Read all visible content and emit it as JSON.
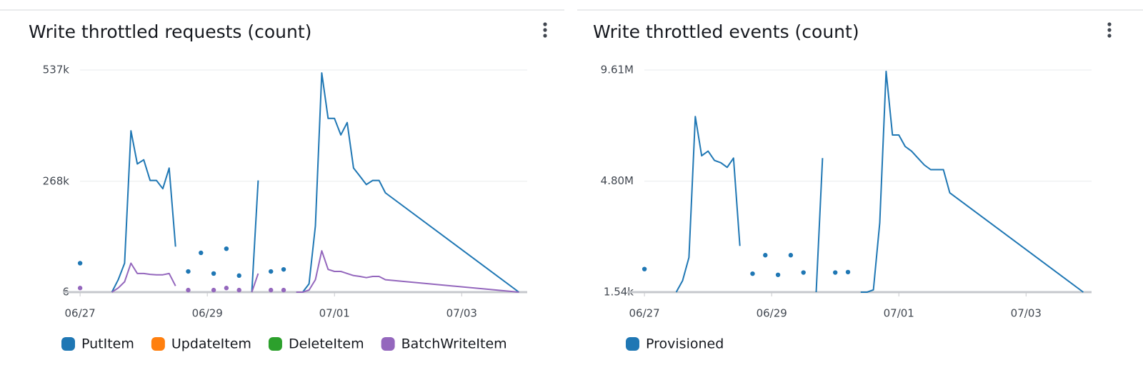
{
  "chart_data": [
    {
      "type": "line",
      "title": "Write throttled requests (count)",
      "x": [
        0,
        0.1,
        0.2,
        0.3,
        0.4,
        0.5,
        0.6,
        0.7,
        0.8,
        0.9,
        1.0,
        1.1,
        1.2,
        1.3,
        1.4,
        1.5,
        1.6,
        1.7,
        1.8,
        1.9,
        2.0,
        2.1,
        2.2,
        2.3,
        2.4,
        2.5,
        2.6,
        2.7,
        2.8,
        2.9,
        3.0,
        3.1,
        3.2,
        3.3,
        3.4,
        3.5,
        3.6,
        3.7,
        3.8,
        3.9,
        4.0,
        4.1,
        4.2,
        4.3,
        4.4,
        4.5,
        4.6,
        4.7,
        4.8,
        6.9
      ],
      "xlim": [
        -0.08,
        7.03
      ],
      "xticks": [
        {
          "value": 0,
          "label": "06/27"
        },
        {
          "value": 2,
          "label": "06/29"
        },
        {
          "value": 4,
          "label": "07/01"
        },
        {
          "value": 6,
          "label": "07/03"
        }
      ],
      "ylim": [
        6,
        537000
      ],
      "yticks": [
        6,
        {
          "value": 268000,
          "label": "268k"
        },
        {
          "value": 537000,
          "label": "537k"
        }
      ],
      "grid": true,
      "series": [
        {
          "name": "PutItem",
          "color": "#1f77b4",
          "values": [
            70000,
            null,
            null,
            null,
            null,
            0,
            30000,
            70000,
            390000,
            310000,
            320000,
            270000,
            270000,
            250000,
            300000,
            110000,
            null,
            50000,
            null,
            95000,
            null,
            45000,
            null,
            105000,
            null,
            40000,
            null,
            0,
            270000,
            null,
            50000,
            null,
            55000,
            null,
            0,
            0,
            20000,
            160000,
            530000,
            420000,
            420000,
            380000,
            410000,
            300000,
            280000,
            260000,
            270000,
            270000,
            240000,
            0
          ]
        },
        {
          "name": "UpdateItem",
          "color": "#ff7f0e",
          "values": [
            null,
            null,
            null,
            null,
            null,
            null,
            null,
            null,
            null,
            null,
            null,
            null,
            null,
            null,
            null,
            null,
            null,
            null,
            null,
            null,
            null,
            null,
            null,
            null,
            null,
            null,
            null,
            null,
            null,
            null,
            null,
            null,
            null,
            null,
            null,
            null,
            null,
            null,
            null,
            null,
            null,
            null,
            null,
            null,
            null,
            null,
            null,
            null,
            null,
            null
          ]
        },
        {
          "name": "DeleteItem",
          "color": "#2ca02c",
          "values": [
            null,
            null,
            null,
            null,
            null,
            null,
            null,
            null,
            null,
            null,
            null,
            null,
            null,
            null,
            null,
            null,
            null,
            null,
            null,
            null,
            null,
            null,
            null,
            null,
            null,
            null,
            null,
            null,
            null,
            null,
            null,
            null,
            null,
            null,
            null,
            null,
            null,
            null,
            null,
            null,
            null,
            null,
            null,
            null,
            null,
            null,
            null,
            null,
            null,
            null
          ]
        },
        {
          "name": "BatchWriteItem",
          "color": "#9467bd",
          "values": [
            10000,
            null,
            null,
            null,
            null,
            0,
            10000,
            25000,
            70000,
            45000,
            45000,
            43000,
            42000,
            42000,
            45000,
            15000,
            null,
            5000,
            null,
            null,
            null,
            5000,
            null,
            10000,
            null,
            5000,
            null,
            0,
            45000,
            null,
            5000,
            null,
            5000,
            null,
            0,
            0,
            5000,
            30000,
            100000,
            55000,
            50000,
            50000,
            45000,
            40000,
            38000,
            35000,
            38000,
            38000,
            30000,
            0
          ]
        }
      ]
    },
    {
      "type": "line",
      "title": "Write throttled events (count)",
      "x": [
        0,
        0.1,
        0.2,
        0.3,
        0.4,
        0.5,
        0.6,
        0.7,
        0.8,
        0.9,
        1.0,
        1.1,
        1.2,
        1.3,
        1.4,
        1.5,
        1.6,
        1.7,
        1.8,
        1.9,
        2.0,
        2.1,
        2.2,
        2.3,
        2.4,
        2.5,
        2.6,
        2.7,
        2.8,
        2.9,
        3.0,
        3.1,
        3.2,
        3.3,
        3.4,
        3.5,
        3.6,
        3.7,
        3.8,
        3.9,
        4.0,
        4.1,
        4.2,
        4.3,
        4.4,
        4.5,
        4.6,
        4.7,
        4.8,
        6.9
      ],
      "xlim": [
        -0.08,
        7.03
      ],
      "xticks": [
        {
          "value": 0,
          "label": "06/27"
        },
        {
          "value": 2,
          "label": "06/29"
        },
        {
          "value": 4,
          "label": "07/01"
        },
        {
          "value": 6,
          "label": "07/03"
        }
      ],
      "ylim": [
        1540,
        9610000
      ],
      "yticks": [
        {
          "value": 1540,
          "label": "1.54k"
        },
        {
          "value": 4800000,
          "label": "4.80M"
        },
        {
          "value": 9610000,
          "label": "9.61M"
        }
      ],
      "grid": true,
      "series": [
        {
          "name": "Provisioned",
          "color": "#1f77b4",
          "values": [
            1000000,
            null,
            null,
            null,
            null,
            1540,
            500000,
            1500000,
            7600000,
            5900000,
            6100000,
            5700000,
            5600000,
            5400000,
            5800000,
            2000000,
            null,
            800000,
            null,
            1600000,
            null,
            750000,
            null,
            1600000,
            null,
            850000,
            null,
            1540,
            5800000,
            null,
            850000,
            null,
            870000,
            null,
            1540,
            1540,
            100000,
            3000000,
            9550000,
            6800000,
            6800000,
            6300000,
            6100000,
            5800000,
            5500000,
            5300000,
            5300000,
            5300000,
            4300000,
            1540
          ]
        }
      ]
    }
  ]
}
